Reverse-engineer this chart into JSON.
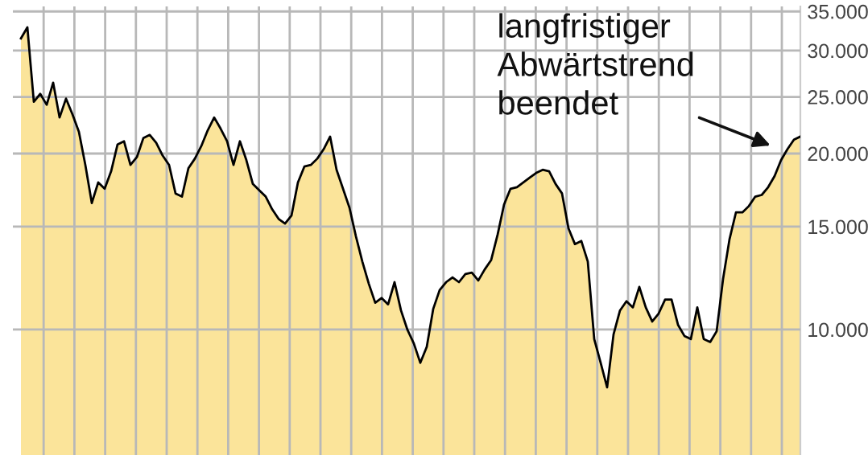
{
  "chart_data": {
    "type": "area",
    "categories": [
      null,
      null,
      null,
      null,
      null,
      null,
      null,
      null,
      null,
      null,
      null,
      null,
      null,
      null,
      null,
      null,
      null,
      null,
      null,
      null,
      null,
      null,
      null,
      null,
      null,
      null,
      null,
      null,
      null,
      null,
      null,
      null,
      null,
      null,
      null,
      null,
      null,
      null,
      null,
      null,
      null,
      null,
      null,
      null,
      null,
      null,
      null,
      null,
      null,
      null,
      null,
      null,
      null,
      null,
      null,
      null,
      null,
      null,
      null,
      null,
      null,
      null,
      null,
      null,
      null,
      null,
      null,
      null,
      null,
      null,
      null,
      null,
      null,
      null,
      null,
      null,
      null,
      null,
      null,
      null,
      null,
      null,
      null,
      null,
      null,
      null,
      null,
      null,
      null,
      null,
      null,
      null,
      null,
      null,
      null,
      null,
      null,
      null,
      null,
      null,
      null,
      null,
      null,
      null,
      null,
      null,
      null,
      null,
      null,
      null,
      null,
      null,
      null,
      null,
      null,
      null,
      null,
      null,
      null,
      null,
      null,
      null
    ],
    "series": [
      {
        "color": "#fbe49a",
        "values": [
          31480,
          32880,
          24530,
          25300,
          24230,
          26440,
          23050,
          24830,
          23340,
          21790,
          19120,
          16460,
          17850,
          17410,
          18650,
          20730,
          20990,
          19120,
          19720,
          21250,
          21520,
          20860,
          19840,
          19120,
          17090,
          16880,
          18880,
          19600,
          20600,
          21920,
          23050,
          22060,
          20990,
          19120,
          20990,
          19480,
          17740,
          17300,
          16880,
          16060,
          15460,
          15180,
          15660,
          17850,
          19000,
          19120,
          19600,
          20350,
          21380,
          18760,
          17410,
          16160,
          14440,
          13070,
          11980,
          11110,
          11320,
          11040,
          12050,
          10780,
          9990,
          9460,
          8770,
          9340,
          10840,
          11680,
          12050,
          12280,
          12050,
          12440,
          12510,
          12130,
          12670,
          13150,
          14530,
          16360,
          17410,
          17520,
          17850,
          18190,
          18530,
          18760,
          18650,
          17740,
          17090,
          14900,
          14000,
          14170,
          13070,
          9630,
          8770,
          7960,
          9810,
          10780,
          11180,
          10910,
          11830,
          10910,
          10320,
          10650,
          11250,
          11250,
          10190,
          9750,
          9630,
          10910,
          9630,
          9520,
          9930,
          12200,
          14270,
          15860,
          15860,
          16260,
          16880,
          16990,
          17520,
          18300,
          19480,
          20350,
          21120,
          21380
        ]
      }
    ],
    "log": "y",
    "ylim": [
      6100,
      35700
    ],
    "yticks": [
      {
        "value": 10000,
        "label": "10.000"
      },
      {
        "value": 15000,
        "label": "15.000"
      },
      {
        "value": 20000,
        "label": "20.000"
      },
      {
        "value": 25000,
        "label": "25.000"
      },
      {
        "value": 30000,
        "label": "30.000"
      },
      {
        "value": 35000,
        "label": "35.000"
      }
    ],
    "grid": true,
    "annotations": [
      "langfristiger\nAbwärtstrend\nbeendet"
    ]
  }
}
